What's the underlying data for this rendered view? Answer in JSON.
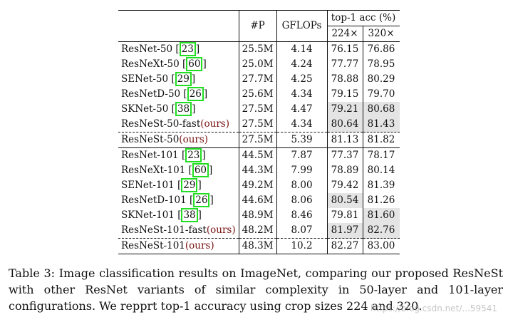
{
  "table": {
    "header": {
      "params": "#P",
      "gflops": "GFLOPs",
      "top1": "top-1 acc (%)",
      "crop224": "224×",
      "crop320": "320×"
    },
    "group50": [
      {
        "name": "ResNet-50",
        "ref": "23",
        "params": "25.5M",
        "gflops": "4.14",
        "a224": "76.15",
        "a320": "76.86",
        "hl224": false,
        "hl320": false,
        "bold": false
      },
      {
        "name": "ResNeXt-50",
        "ref": "60",
        "params": "25.0M",
        "gflops": "4.24",
        "a224": "77.77",
        "a320": "78.95",
        "hl224": false,
        "hl320": false,
        "bold": false
      },
      {
        "name": "SENet-50",
        "ref": "29",
        "params": "27.7M",
        "gflops": "4.25",
        "a224": "78.88",
        "a320": "80.29",
        "hl224": false,
        "hl320": false,
        "bold": false
      },
      {
        "name": "ResNetD-50",
        "ref": "26",
        "params": "25.6M",
        "gflops": "4.34",
        "a224": "79.15",
        "a320": "79.70",
        "hl224": false,
        "hl320": false,
        "bold": false
      },
      {
        "name": "SKNet-50",
        "ref": "38",
        "params": "27.5M",
        "gflops": "4.47",
        "a224": "79.21",
        "a320": "80.68",
        "hl224": true,
        "hl320": true,
        "bold": false
      },
      {
        "name": "ResNeSt-50-fast",
        "ours": "(ours)",
        "params": "27.5M",
        "gflops": "4.34",
        "a224": "80.64",
        "a320": "81.43",
        "hl224": true,
        "hl320": true,
        "bold": true
      }
    ],
    "row50": {
      "name": "ResNeSt-50",
      "ours": "(ours)",
      "params": "27.5M",
      "gflops": "5.39",
      "a224": "81.13",
      "a320": "81.82"
    },
    "group101": [
      {
        "name": "ResNet-101",
        "ref": "23",
        "params": "44.5M",
        "gflops": "7.87",
        "a224": "77.37",
        "a320": "78.17",
        "hl224": false,
        "hl320": false,
        "bold": false
      },
      {
        "name": "ResNeXt-101",
        "ref": "60",
        "params": "44.3M",
        "gflops": "7.99",
        "a224": "78.89",
        "a320": "80.14",
        "hl224": false,
        "hl320": false,
        "bold": false
      },
      {
        "name": "SENet-101",
        "ref": "29",
        "params": "49.2M",
        "gflops": "8.00",
        "a224": "79.42",
        "a320": "81.39",
        "hl224": false,
        "hl320": false,
        "bold": false
      },
      {
        "name": "ResNetD-101",
        "ref": "26",
        "params": "44.6M",
        "gflops": "8.06",
        "a224": "80.54",
        "a320": "81.26",
        "hl224": true,
        "hl320": false,
        "bold": false
      },
      {
        "name": "SKNet-101",
        "ref": "38",
        "params": "48.9M",
        "gflops": "8.46",
        "a224": "79.81",
        "a320": "81.60",
        "hl224": false,
        "hl320": true,
        "bold": false
      },
      {
        "name": "ResNeSt-101-fast",
        "ours": "(ours)",
        "params": "48.2M",
        "gflops": "8.07",
        "a224": "81.97",
        "a320": "82.76",
        "hl224": true,
        "hl320": true,
        "bold": true
      }
    ],
    "row101": {
      "name": "ResNeSt-101",
      "ours": "(ours)",
      "params": "48.3M",
      "gflops": "10.2",
      "a224": "82.27",
      "a320": "83.00"
    }
  },
  "caption": "Table 3: Image classification results on ImageNet, comparing our proposed ResNeSt with other ResNet variants of similar complexity in 50-layer and 101-layer configurations. We repprt top-1 accuracy using crop sizes 224 and 320.",
  "watermark": "https://blog.csdn.net/...59541"
}
